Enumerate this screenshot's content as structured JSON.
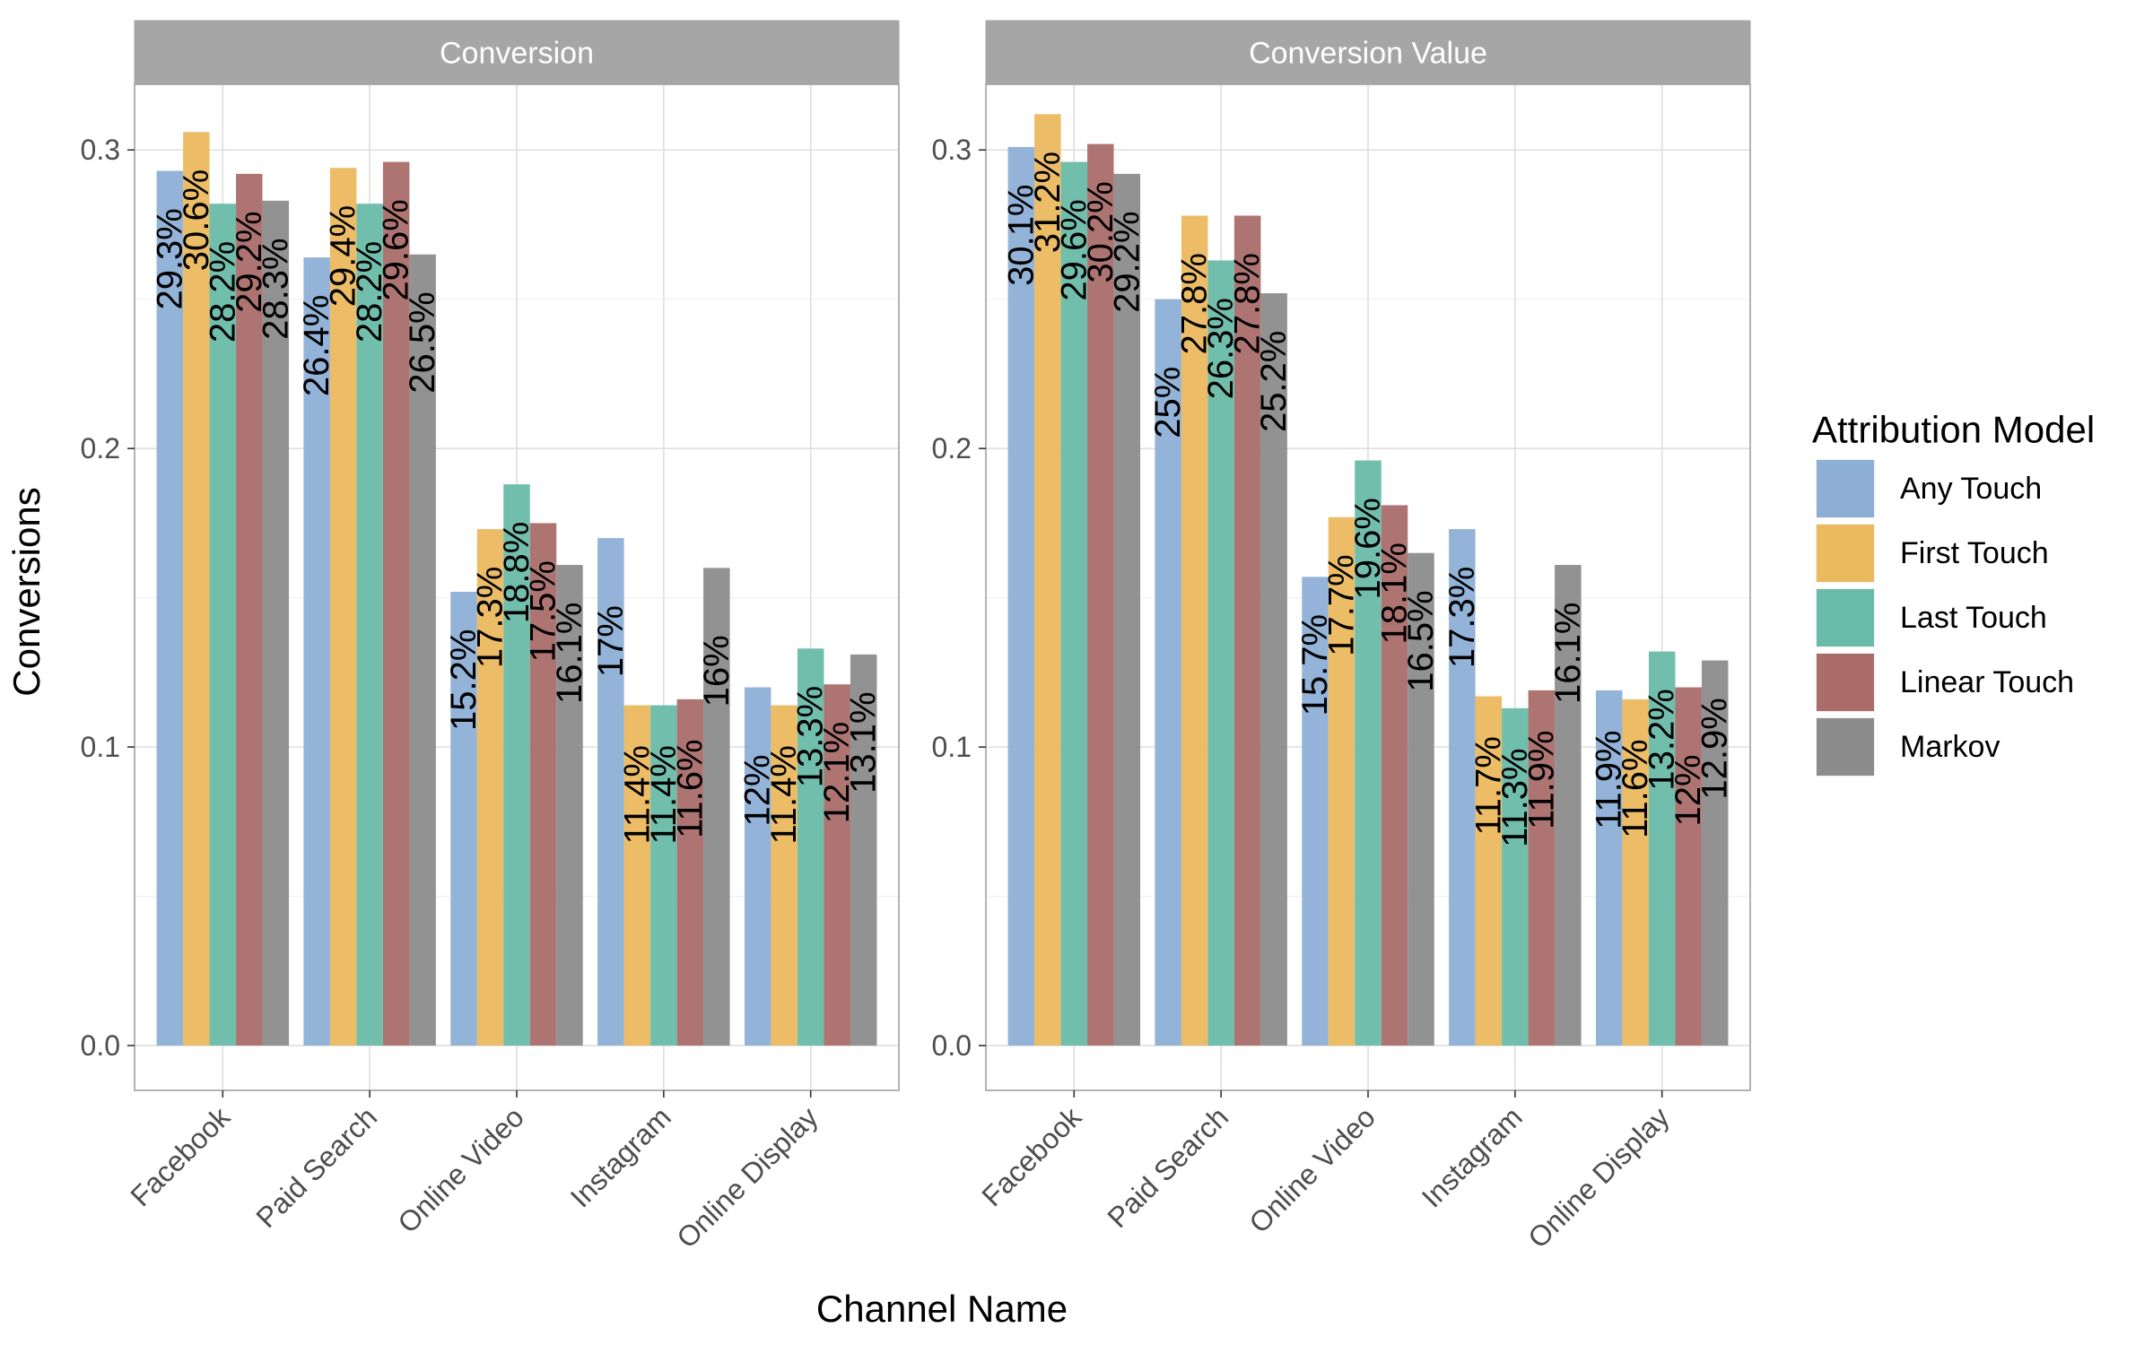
{
  "chart_data": {
    "type": "bar",
    "xlabel": "Channel Name",
    "ylabel": "Conversions",
    "ylim": [
      -0.015,
      0.322
    ],
    "yticks": [
      0.0,
      0.1,
      0.2,
      0.3
    ],
    "ytick_labels": [
      "0.0",
      "0.1",
      "0.2",
      "0.3"
    ],
    "grid": true,
    "legend": {
      "title": "Attribution Model",
      "position": "right",
      "entries": [
        "Any Touch",
        "First Touch",
        "Last Touch",
        "Linear Touch",
        "Markov"
      ]
    },
    "colors": [
      "#8DAFD6",
      "#EBB95E",
      "#69BBA9",
      "#AA6D6A",
      "#8C8C8C"
    ],
    "categories": [
      "Facebook",
      "Paid Search",
      "Online Video",
      "Instagram",
      "Online Display"
    ],
    "panels": [
      {
        "title": "Conversion",
        "ylim": [
          -0.015,
          0.322
        ],
        "series": [
          {
            "name": "Any Touch",
            "values": [
              0.293,
              0.264,
              0.152,
              0.17,
              0.12
            ],
            "labels": [
              "29.3%",
              "26.4%",
              "15.2%",
              "17%",
              "12%"
            ]
          },
          {
            "name": "First Touch",
            "values": [
              0.306,
              0.294,
              0.173,
              0.114,
              0.114
            ],
            "labels": [
              "30.6%",
              "29.4%",
              "17.3%",
              "11.4%",
              "11.4%"
            ]
          },
          {
            "name": "Last Touch",
            "values": [
              0.282,
              0.282,
              0.188,
              0.114,
              0.133
            ],
            "labels": [
              "28.2%",
              "28.2%",
              "18.8%",
              "11.4%",
              "13.3%"
            ]
          },
          {
            "name": "Linear Touch",
            "values": [
              0.292,
              0.296,
              0.175,
              0.116,
              0.121
            ],
            "labels": [
              "29.2%",
              "29.6%",
              "17.5%",
              "11.6%",
              "12.1%"
            ]
          },
          {
            "name": "Markov",
            "values": [
              0.283,
              0.265,
              0.161,
              0.16,
              0.131
            ],
            "labels": [
              "28.3%",
              "26.5%",
              "16.1%",
              "16%",
              "13.1%"
            ]
          }
        ]
      },
      {
        "title": "Conversion Value",
        "ylim": [
          -0.015,
          0.322
        ],
        "series": [
          {
            "name": "Any Touch",
            "values": [
              0.301,
              0.25,
              0.157,
              0.173,
              0.119
            ],
            "labels": [
              "30.1%",
              "25%",
              "15.7%",
              "17.3%",
              "11.9%"
            ]
          },
          {
            "name": "First Touch",
            "values": [
              0.312,
              0.278,
              0.177,
              0.117,
              0.116
            ],
            "labels": [
              "31.2%",
              "27.8%",
              "17.7%",
              "11.7%",
              "11.6%"
            ]
          },
          {
            "name": "Last Touch",
            "values": [
              0.296,
              0.263,
              0.196,
              0.113,
              0.132
            ],
            "labels": [
              "29.6%",
              "26.3%",
              "19.6%",
              "11.3%",
              "13.2%"
            ]
          },
          {
            "name": "Linear Touch",
            "values": [
              0.302,
              0.278,
              0.181,
              0.119,
              0.12
            ],
            "labels": [
              "30.2%",
              "27.8%",
              "18.1%",
              "11.9%",
              "12%"
            ]
          },
          {
            "name": "Markov",
            "values": [
              0.292,
              0.252,
              0.165,
              0.161,
              0.129
            ],
            "labels": [
              "29.2%",
              "25.2%",
              "16.5%",
              "16.1%",
              "12.9%"
            ]
          }
        ]
      }
    ]
  }
}
